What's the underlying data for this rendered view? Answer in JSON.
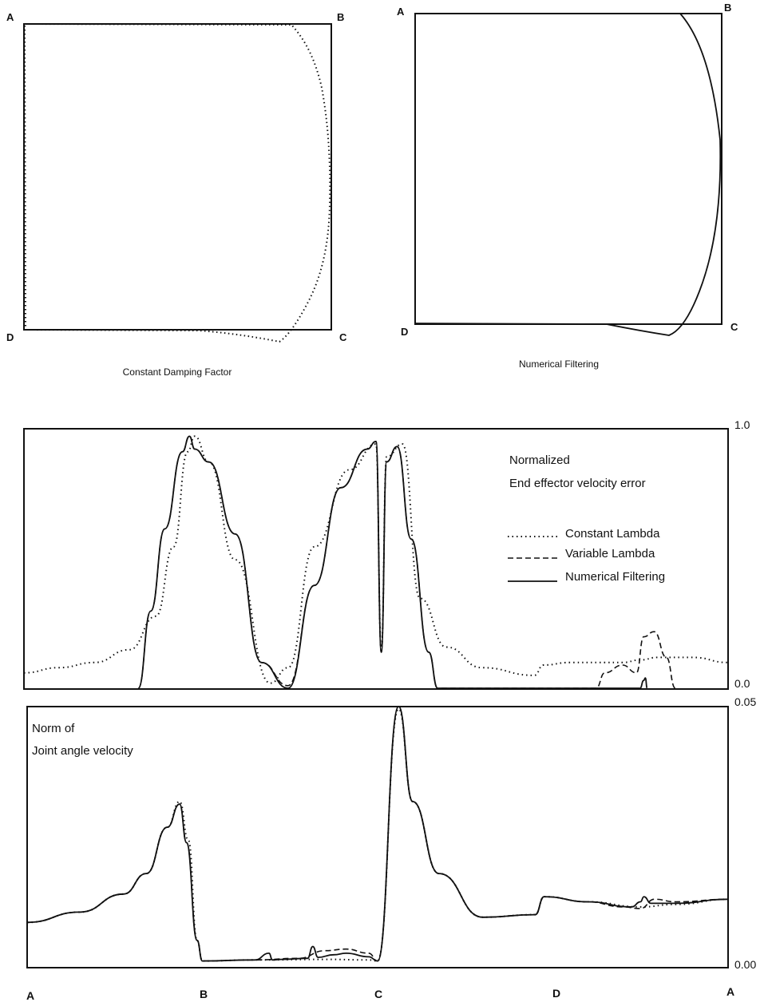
{
  "top_plots": [
    {
      "caption": "Constant Damping Factor",
      "corners": {
        "A": "A",
        "B": "B",
        "C": "C",
        "D": "D"
      },
      "trajectory_style": "dotted"
    },
    {
      "caption": "Numerical Filtering",
      "corners": {
        "A": "A",
        "B": "B",
        "C": "C",
        "D": "D"
      },
      "trajectory_style": "solid"
    }
  ],
  "panel1": {
    "title_line1": "Normalized",
    "title_line2": "End effector velocity error",
    "y_top_label": "1.0",
    "y_bottom_label": "0.0"
  },
  "panel2": {
    "title_line1": "Norm of",
    "title_line2": "Joint angle velocity",
    "y_top_label": "0.05",
    "y_bottom_label": "0.00"
  },
  "legend": [
    {
      "label": "Constant Lambda",
      "style": "dotted"
    },
    {
      "label": "Variable Lambda",
      "style": "dashed"
    },
    {
      "label": "Numerical Filtering",
      "style": "solid"
    }
  ],
  "x_axis_labels": [
    "A",
    "B",
    "C",
    "D",
    "A"
  ],
  "chart_data": [
    {
      "type": "line",
      "xlabel": "",
      "ylabel": "",
      "x_ticks": [
        "A",
        "B",
        "C",
        "D",
        "A"
      ],
      "xlim": [
        0,
        4
      ],
      "ylim": [
        0,
        1.0
      ],
      "series": [
        {
          "name": "Constant Lambda",
          "style": "dotted",
          "x": [
            0,
            0.2,
            0.4,
            0.6,
            0.75,
            0.85,
            0.93,
            0.97,
            1.05,
            1.2,
            1.4,
            1.5,
            1.65,
            1.85,
            2.0,
            2.03,
            2.06,
            2.15,
            2.25,
            2.4,
            2.6,
            2.9,
            2.95,
            3.1,
            3.3,
            3.4,
            3.5,
            3.6,
            3.8,
            4.0
          ],
          "y": [
            0.06,
            0.08,
            0.1,
            0.15,
            0.28,
            0.55,
            0.92,
            0.98,
            0.88,
            0.5,
            0.02,
            0.08,
            0.55,
            0.85,
            0.95,
            0.15,
            0.9,
            0.95,
            0.35,
            0.16,
            0.08,
            0.05,
            0.09,
            0.1,
            0.1,
            0.1,
            0.11,
            0.12,
            0.12,
            0.1
          ]
        },
        {
          "name": "Variable Lambda",
          "style": "dashed",
          "x": [
            0.65,
            0.72,
            0.8,
            0.9,
            0.94,
            0.97,
            1.05,
            1.2,
            1.35,
            1.5,
            1.65,
            1.8,
            1.95,
            2.0,
            2.03,
            2.06,
            2.12,
            2.2,
            2.3,
            2.35,
            3.25,
            3.3,
            3.4,
            3.48,
            3.52,
            3.58,
            3.65,
            3.7
          ],
          "y": [
            0.0,
            0.3,
            0.62,
            0.92,
            0.98,
            0.93,
            0.88,
            0.6,
            0.1,
            0.01,
            0.4,
            0.78,
            0.93,
            0.96,
            0.14,
            0.88,
            0.94,
            0.58,
            0.14,
            0.0,
            0.0,
            0.06,
            0.09,
            0.06,
            0.2,
            0.22,
            0.12,
            0.0
          ]
        },
        {
          "name": "Numerical Filtering",
          "style": "solid",
          "x": [
            0.65,
            0.72,
            0.8,
            0.9,
            0.94,
            0.97,
            1.05,
            1.2,
            1.35,
            1.5,
            1.65,
            1.8,
            1.95,
            2.0,
            2.03,
            2.06,
            2.12,
            2.2,
            2.3,
            2.35,
            3.5,
            3.52,
            3.53,
            3.54
          ],
          "y": [
            0.0,
            0.3,
            0.62,
            0.92,
            0.98,
            0.93,
            0.88,
            0.6,
            0.1,
            0.0,
            0.4,
            0.78,
            0.93,
            0.96,
            0.14,
            0.88,
            0.94,
            0.58,
            0.14,
            0.0,
            0.0,
            0.03,
            0.04,
            0.0
          ]
        }
      ]
    },
    {
      "type": "line",
      "xlabel": "",
      "ylabel": "",
      "x_ticks": [
        "A",
        "B",
        "C",
        "D",
        "A"
      ],
      "xlim": [
        0,
        4
      ],
      "ylim": [
        0,
        0.05
      ],
      "series": [
        {
          "name": "Constant Lambda",
          "style": "dotted",
          "x": [
            0,
            0.3,
            0.55,
            0.68,
            0.8,
            0.87,
            0.92,
            0.97,
            1.0,
            1.3,
            1.7,
            1.95,
            2.0,
            2.12,
            2.2,
            2.35,
            2.6,
            2.9,
            2.95,
            3.2,
            3.5,
            3.7,
            4.0
          ],
          "y": [
            0.0085,
            0.0105,
            0.014,
            0.018,
            0.027,
            0.032,
            0.0245,
            0.005,
            0.001,
            0.0012,
            0.0013,
            0.0012,
            0.001,
            0.05,
            0.032,
            0.018,
            0.0095,
            0.01,
            0.0135,
            0.0125,
            0.0115,
            0.012,
            0.013
          ]
        },
        {
          "name": "Variable Lambda",
          "style": "dashed",
          "x": [
            0,
            0.3,
            0.55,
            0.68,
            0.8,
            0.87,
            0.91,
            0.97,
            1.0,
            1.3,
            1.55,
            1.7,
            1.82,
            1.95,
            2.0,
            2.12,
            2.2,
            2.35,
            2.6,
            2.9,
            2.95,
            3.2,
            3.4,
            3.5,
            3.58,
            3.7,
            4.0
          ],
          "y": [
            0.0085,
            0.0105,
            0.014,
            0.018,
            0.027,
            0.0315,
            0.024,
            0.005,
            0.001,
            0.0012,
            0.0015,
            0.003,
            0.0033,
            0.0025,
            0.001,
            0.0505,
            0.032,
            0.018,
            0.0095,
            0.01,
            0.0135,
            0.0125,
            0.0115,
            0.0112,
            0.013,
            0.0125,
            0.013
          ]
        },
        {
          "name": "Numerical Filtering",
          "style": "solid",
          "x": [
            0,
            0.3,
            0.55,
            0.68,
            0.8,
            0.87,
            0.91,
            0.97,
            1.0,
            1.3,
            1.38,
            1.4,
            1.45,
            1.6,
            1.63,
            1.66,
            1.75,
            1.82,
            1.95,
            2.0,
            2.12,
            2.2,
            2.35,
            2.6,
            2.9,
            2.95,
            3.2,
            3.45,
            3.5,
            3.52,
            3.56,
            3.7,
            4.0
          ],
          "y": [
            0.0085,
            0.0105,
            0.014,
            0.018,
            0.027,
            0.0315,
            0.024,
            0.005,
            0.001,
            0.0012,
            0.0025,
            0.0012,
            0.0013,
            0.0015,
            0.0038,
            0.0017,
            0.0022,
            0.0025,
            0.0018,
            0.001,
            0.0505,
            0.032,
            0.018,
            0.0095,
            0.01,
            0.0135,
            0.0125,
            0.0115,
            0.0125,
            0.0135,
            0.0122,
            0.0122,
            0.013
          ]
        }
      ]
    }
  ]
}
